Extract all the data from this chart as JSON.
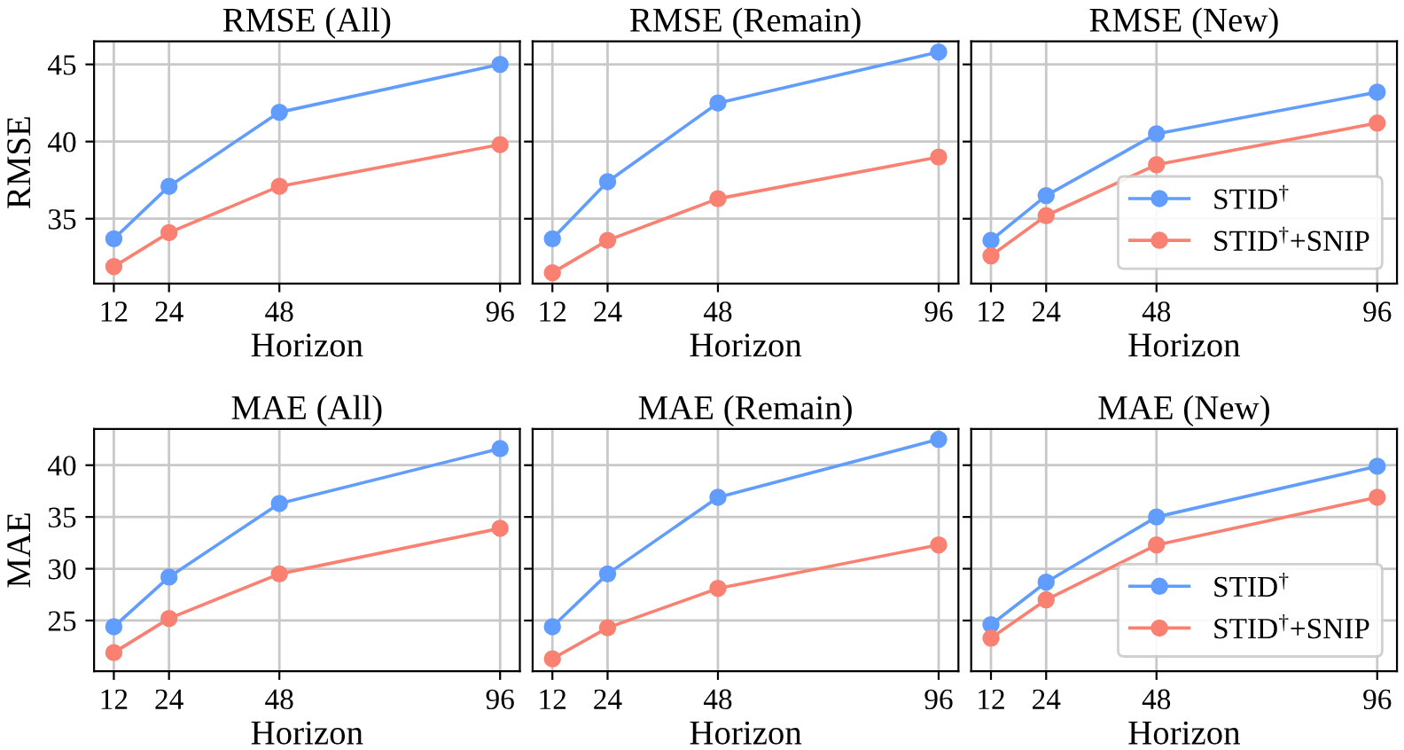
{
  "chart_data": [
    {
      "type": "line",
      "title": "RMSE (All)",
      "xlabel": "Horizon",
      "ylabel": "RMSE",
      "x": [
        12,
        24,
        48,
        96
      ],
      "xlim": [
        7.7,
        100.3
      ],
      "xticks": [
        12,
        24,
        48,
        96
      ],
      "ylim": [
        30.8,
        46.5
      ],
      "yticks": [
        35,
        40,
        45
      ],
      "grid": true,
      "marker": "circle",
      "line_style": "solid",
      "series": [
        {
          "color": "#619cff",
          "values": [
            33.7,
            37.1,
            41.9,
            45.0
          ]
        },
        {
          "color": "#fa8072",
          "values": [
            31.9,
            34.1,
            37.1,
            39.8
          ]
        }
      ]
    },
    {
      "type": "line",
      "title": "RMSE (Remain)",
      "xlabel": "Horizon",
      "x": [
        12,
        24,
        48,
        96
      ],
      "xlim": [
        7.7,
        100.3
      ],
      "xticks": [
        12,
        24,
        48,
        96
      ],
      "ylim": [
        30.8,
        46.5
      ],
      "yticks": [
        35,
        40,
        45
      ],
      "tick_labels": "x",
      "grid": true,
      "marker": "circle",
      "line_style": "solid",
      "series": [
        {
          "color": "#619cff",
          "values": [
            33.7,
            37.4,
            42.5,
            45.8
          ]
        },
        {
          "color": "#fa8072",
          "values": [
            31.5,
            33.6,
            36.3,
            39.0
          ]
        }
      ]
    },
    {
      "type": "line",
      "title": "RMSE (New)",
      "xlabel": "Horizon",
      "x": [
        12,
        24,
        48,
        96
      ],
      "xlim": [
        7.7,
        100.3
      ],
      "xticks": [
        12,
        24,
        48,
        96
      ],
      "ylim": [
        30.8,
        46.5
      ],
      "yticks": [
        35,
        40,
        45
      ],
      "tick_labels": "x",
      "grid": true,
      "marker": "circle",
      "line_style": "solid",
      "legend": "lower right",
      "series": [
        {
          "name": "STID$^{†}$",
          "color": "#619cff",
          "values": [
            33.6,
            36.5,
            40.5,
            43.2
          ]
        },
        {
          "name": "STID$^{†}$+SNIP",
          "color": "#fa8072",
          "values": [
            32.6,
            35.2,
            38.5,
            41.2
          ]
        }
      ]
    },
    {
      "type": "line",
      "title": "MAE (All)",
      "xlabel": "Horizon",
      "ylabel": "MAE",
      "x": [
        12,
        24,
        48,
        96
      ],
      "xlim": [
        7.7,
        100.3
      ],
      "xticks": [
        12,
        24,
        48,
        96
      ],
      "ylim": [
        20.1,
        43.5
      ],
      "yticks": [
        25,
        30,
        35,
        40
      ],
      "grid": true,
      "marker": "circle",
      "line_style": "solid",
      "series": [
        {
          "color": "#619cff",
          "values": [
            24.4,
            29.2,
            36.3,
            41.6
          ]
        },
        {
          "color": "#fa8072",
          "values": [
            21.9,
            25.2,
            29.5,
            33.9
          ]
        }
      ]
    },
    {
      "type": "line",
      "title": "MAE (Remain)",
      "xlabel": "Horizon",
      "x": [
        12,
        24,
        48,
        96
      ],
      "xlim": [
        7.7,
        100.3
      ],
      "xticks": [
        12,
        24,
        48,
        96
      ],
      "ylim": [
        20.1,
        43.5
      ],
      "yticks": [
        25,
        30,
        35,
        40
      ],
      "tick_labels": "x",
      "grid": true,
      "marker": "circle",
      "line_style": "solid",
      "series": [
        {
          "color": "#619cff",
          "values": [
            24.4,
            29.5,
            36.9,
            42.5
          ]
        },
        {
          "color": "#fa8072",
          "values": [
            21.3,
            24.3,
            28.1,
            32.3
          ]
        }
      ]
    },
    {
      "type": "line",
      "title": "MAE (New)",
      "xlabel": "Horizon",
      "x": [
        12,
        24,
        48,
        96
      ],
      "xlim": [
        7.7,
        100.3
      ],
      "xticks": [
        12,
        24,
        48,
        96
      ],
      "ylim": [
        20.1,
        43.5
      ],
      "yticks": [
        25,
        30,
        35,
        40
      ],
      "tick_labels": "x",
      "grid": true,
      "marker": "circle",
      "line_style": "solid",
      "legend": "lower right",
      "series": [
        {
          "name": "STID$^{†}$",
          "color": "#619cff",
          "values": [
            24.6,
            28.7,
            35.0,
            39.9
          ]
        },
        {
          "name": "STID$^{†}$+SNIP",
          "color": "#fa8072",
          "values": [
            23.3,
            27.0,
            32.3,
            36.9
          ]
        }
      ]
    }
  ]
}
